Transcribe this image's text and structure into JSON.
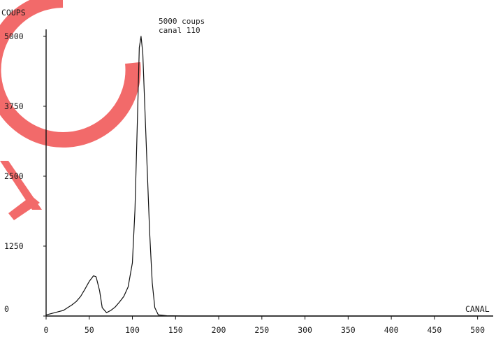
{
  "chart_data": {
    "type": "line",
    "ylabel": "COUPS",
    "xlabel": "CANAL",
    "xlim": [
      0,
      510
    ],
    "ylim": [
      0,
      5000
    ],
    "x_ticks": [
      0,
      50,
      100,
      150,
      200,
      250,
      300,
      350,
      400,
      450,
      500
    ],
    "y_ticks": [
      0,
      1250,
      2500,
      3750,
      5000
    ],
    "annotation": [
      "5000 coups",
      "canal 110"
    ],
    "series": [
      {
        "x": [
          0,
          5,
          10,
          15,
          20,
          25,
          30,
          35,
          40,
          45,
          50,
          55,
          58,
          62,
          65,
          70,
          75,
          80,
          85,
          90,
          95,
          100,
          103,
          106,
          108,
          110,
          112,
          114,
          117,
          120,
          123,
          126,
          130,
          140,
          160,
          200,
          300,
          400,
          500
        ],
        "y": [
          20,
          40,
          60,
          80,
          100,
          150,
          200,
          260,
          350,
          480,
          620,
          720,
          700,
          450,
          150,
          60,
          100,
          160,
          250,
          350,
          520,
          950,
          1900,
          3600,
          4800,
          5000,
          4700,
          3900,
          2700,
          1500,
          600,
          150,
          20,
          5,
          0,
          0,
          0,
          0,
          0
        ]
      }
    ],
    "background_mark": "red-partial-ring"
  }
}
